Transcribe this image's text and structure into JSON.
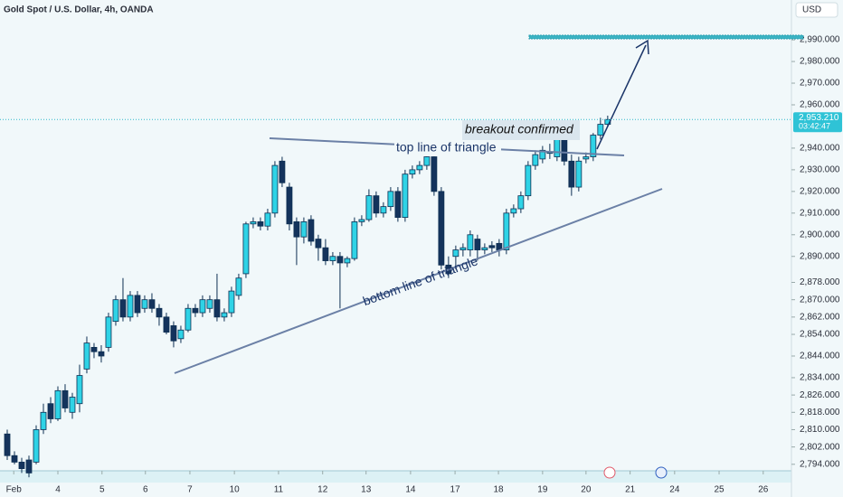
{
  "chart_data": {
    "type": "candlestick",
    "title": "Gold Spot / U.S. Dollar, 4h, OANDA",
    "currency": "USD",
    "up_color": "#2fd3e6",
    "down_color": "#14335c",
    "border_color": "#0d2f52",
    "open": [
      2808,
      2798,
      2795,
      2796,
      2795,
      2810,
      2822,
      2815,
      2828,
      2818,
      2822,
      2838,
      2848,
      2846,
      2848,
      2860,
      2870,
      2862,
      2872,
      2866,
      2870,
      2866,
      2862,
      2858,
      2852,
      2856,
      2866,
      2864,
      2866,
      2870,
      2862,
      2864,
      2872,
      2882,
      2905,
      2906,
      2904,
      2910,
      2934,
      2922,
      2906,
      2899,
      2907,
      2898,
      2894,
      2888,
      2890,
      2887,
      2889,
      2906,
      2907,
      2918,
      2910,
      2913,
      2920,
      2908,
      2928,
      2930,
      2932,
      2936,
      2920,
      2886,
      2890,
      2893,
      2893,
      2898,
      2893,
      2895,
      2896,
      2893,
      2910,
      2912,
      2918,
      2932,
      2935,
      2938,
      2936,
      2945,
      2934,
      2922,
      2935,
      2936,
      2946,
      2951
    ],
    "high": [
      2810,
      2800,
      2797,
      2798,
      2812,
      2822,
      2825,
      2830,
      2831,
      2827,
      2840,
      2853,
      2850,
      2849,
      2864,
      2872,
      2880,
      2874,
      2874,
      2872,
      2873,
      2868,
      2864,
      2860,
      2858,
      2868,
      2868,
      2872,
      2872,
      2882,
      2866,
      2876,
      2882,
      2906,
      2908,
      2908,
      2912,
      2934,
      2936,
      2924,
      2908,
      2908,
      2909,
      2900,
      2898,
      2892,
      2892,
      2890,
      2908,
      2909,
      2921,
      2920,
      2915,
      2922,
      2922,
      2930,
      2932,
      2934,
      2938,
      2938,
      2922,
      2890,
      2895,
      2896,
      2902,
      2900,
      2896,
      2897,
      2898,
      2912,
      2914,
      2920,
      2934,
      2939,
      2941,
      2942,
      2946,
      2947,
      2937,
      2936,
      2938,
      2947,
      2954,
      2955
    ],
    "low": [
      2796,
      2794,
      2790,
      2788,
      2794,
      2808,
      2813,
      2814,
      2818,
      2815,
      2818,
      2836,
      2843,
      2841,
      2846,
      2858,
      2860,
      2860,
      2862,
      2864,
      2864,
      2858,
      2854,
      2848,
      2850,
      2855,
      2862,
      2862,
      2864,
      2860,
      2860,
      2862,
      2870,
      2880,
      2903,
      2902,
      2902,
      2908,
      2922,
      2902,
      2886,
      2896,
      2895,
      2888,
      2886,
      2886,
      2866,
      2885,
      2888,
      2904,
      2906,
      2908,
      2908,
      2911,
      2906,
      2906,
      2926,
      2928,
      2930,
      2918,
      2884,
      2880,
      2884,
      2890,
      2890,
      2888,
      2891,
      2892,
      2890,
      2891,
      2908,
      2910,
      2916,
      2930,
      2933,
      2935,
      2934,
      2932,
      2918,
      2920,
      2933,
      2934,
      2944,
      2950
    ],
    "close": [
      2798,
      2795,
      2792,
      2790,
      2810,
      2818,
      2815,
      2828,
      2820,
      2825,
      2835,
      2850,
      2846,
      2844,
      2862,
      2870,
      2862,
      2872,
      2864,
      2870,
      2866,
      2862,
      2855,
      2851,
      2856,
      2866,
      2864,
      2870,
      2870,
      2862,
      2864,
      2874,
      2880,
      2905,
      2906,
      2904,
      2910,
      2932,
      2924,
      2905,
      2899,
      2906,
      2897,
      2894,
      2888,
      2890,
      2887,
      2889,
      2906,
      2907,
      2918,
      2910,
      2913,
      2920,
      2908,
      2928,
      2930,
      2932,
      2936,
      2920,
      2886,
      2882,
      2893,
      2894,
      2900,
      2893,
      2894,
      2894,
      2893,
      2910,
      2912,
      2918,
      2932,
      2937,
      2939,
      2938,
      2945,
      2934,
      2922,
      2934,
      2936,
      2946,
      2951,
      2953.21
    ],
    "xlim": [
      -1,
      108.4
    ],
    "xticks": [
      {
        "value": 0.9,
        "label": "Feb"
      },
      {
        "value": 7,
        "label": "4"
      },
      {
        "value": 13.1,
        "label": "5"
      },
      {
        "value": 19.1,
        "label": "6"
      },
      {
        "value": 25.25,
        "label": "7"
      },
      {
        "value": 31.4,
        "label": "10"
      },
      {
        "value": 37.5,
        "label": "11"
      },
      {
        "value": 43.6,
        "label": "12"
      },
      {
        "value": 49.6,
        "label": "13"
      },
      {
        "value": 55.75,
        "label": "14"
      },
      {
        "value": 61.9,
        "label": "17"
      },
      {
        "value": 67.9,
        "label": "18"
      },
      {
        "value": 74,
        "label": "19"
      },
      {
        "value": 80,
        "label": "20"
      },
      {
        "value": 86.1,
        "label": "21"
      },
      {
        "value": 92.25,
        "label": "24"
      },
      {
        "value": 98.4,
        "label": "25"
      },
      {
        "value": 104.5,
        "label": "26"
      }
    ],
    "ylim": [
      2791,
      3008.4
    ],
    "yticks": [
      {
        "value": 2794,
        "label": "2,794.000"
      },
      {
        "value": 2802,
        "label": "2,802.000"
      },
      {
        "value": 2810,
        "label": "2,810.000"
      },
      {
        "value": 2818,
        "label": "2,818.000"
      },
      {
        "value": 2826,
        "label": "2,826.000"
      },
      {
        "value": 2834,
        "label": "2,834.000"
      },
      {
        "value": 2844,
        "label": "2,844.000"
      },
      {
        "value": 2854,
        "label": "2,854.000"
      },
      {
        "value": 2862,
        "label": "2,862.000"
      },
      {
        "value": 2870,
        "label": "2,870.000"
      },
      {
        "value": 2878,
        "label": "2,878.000"
      },
      {
        "value": 2890,
        "label": "2,890.000"
      },
      {
        "value": 2900,
        "label": "2,900.000"
      },
      {
        "value": 2910,
        "label": "2,910.000"
      },
      {
        "value": 2920,
        "label": "2,920.000"
      },
      {
        "value": 2930,
        "label": "2,930.000"
      },
      {
        "value": 2940,
        "label": "2,940.000"
      },
      {
        "value": 2960,
        "label": "2,960.000"
      },
      {
        "value": 2970,
        "label": "2,970.000"
      },
      {
        "value": 2980,
        "label": "2,980.000"
      },
      {
        "value": 2990,
        "label": "2,990.000"
      }
    ],
    "last_price": {
      "value": 2953.21,
      "label": "2,953.210"
    },
    "countdown": "03:42:47",
    "annotations": [
      "breakout confirmed",
      "top line of triangle",
      "bottom line of triangle"
    ]
  }
}
